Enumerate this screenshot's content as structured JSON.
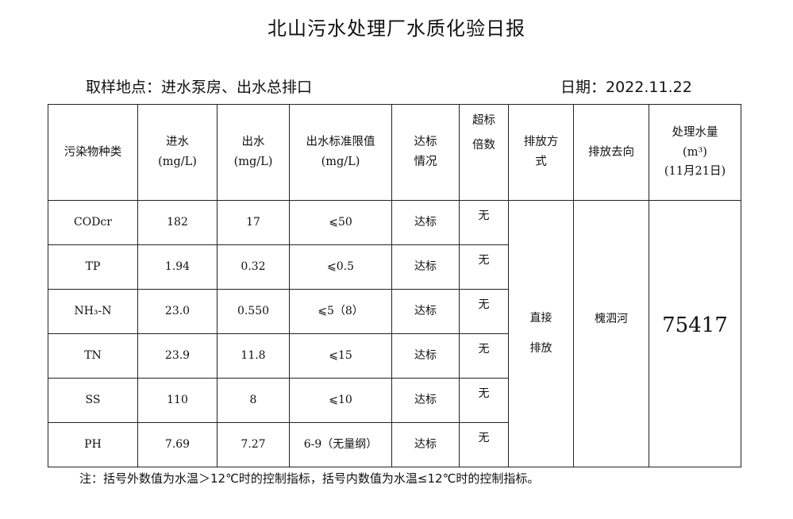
{
  "title": "北山污水处理厂水质化验日报",
  "location": "取样地点：进水泵房、出水总排口",
  "date": "日期：2022.11.22",
  "headers": {
    "pollutant": "污染物种类",
    "inflow_1": "进水",
    "inflow_2": "(mg/L)",
    "outflow_1": "出水",
    "outflow_2": "(mg/L)",
    "limit_1": "出水标准限值",
    "limit_2": "(mg/L)",
    "status_1": "达标",
    "status_2": "情况",
    "exceed_1": "超标",
    "exceed_2": "倍数",
    "method_1": "排放方",
    "method_2": "式",
    "dest": "排放去向",
    "volume_1": "处理水量",
    "volume_2": "(m³)",
    "volume_3": "(11月21日)"
  },
  "rows": [
    {
      "name": "CODcr",
      "in": "182",
      "out": "17",
      "limit": "⩽50",
      "status": "达标",
      "exceed": "无"
    },
    {
      "name": "TP",
      "in": "1.94",
      "out": "0.32",
      "limit": "⩽0.5",
      "status": "达标",
      "exceed": "无"
    },
    {
      "name": "NH₃-N",
      "in": "23.0",
      "out": "0.550",
      "limit": "⩽5（8）",
      "status": "达标",
      "exceed": "无"
    },
    {
      "name": "TN",
      "in": "23.9",
      "out": "11.8",
      "limit": "⩽15",
      "status": "达标",
      "exceed": "无"
    },
    {
      "name": "SS",
      "in": "110",
      "out": "8",
      "limit": "⩽10",
      "status": "达标",
      "exceed": "无"
    },
    {
      "name": "PH",
      "in": "7.69",
      "out": "7.27",
      "limit": "6-9（无量纲）",
      "status": "达标",
      "exceed": "无"
    }
  ],
  "method_1": "直接",
  "method_2": "排放",
  "destination": "槐泗河",
  "volume": "75417",
  "note": "注：括号外数值为水温＞12℃时的控制指标，括号内数值为水温≤12℃时的控制指标。"
}
